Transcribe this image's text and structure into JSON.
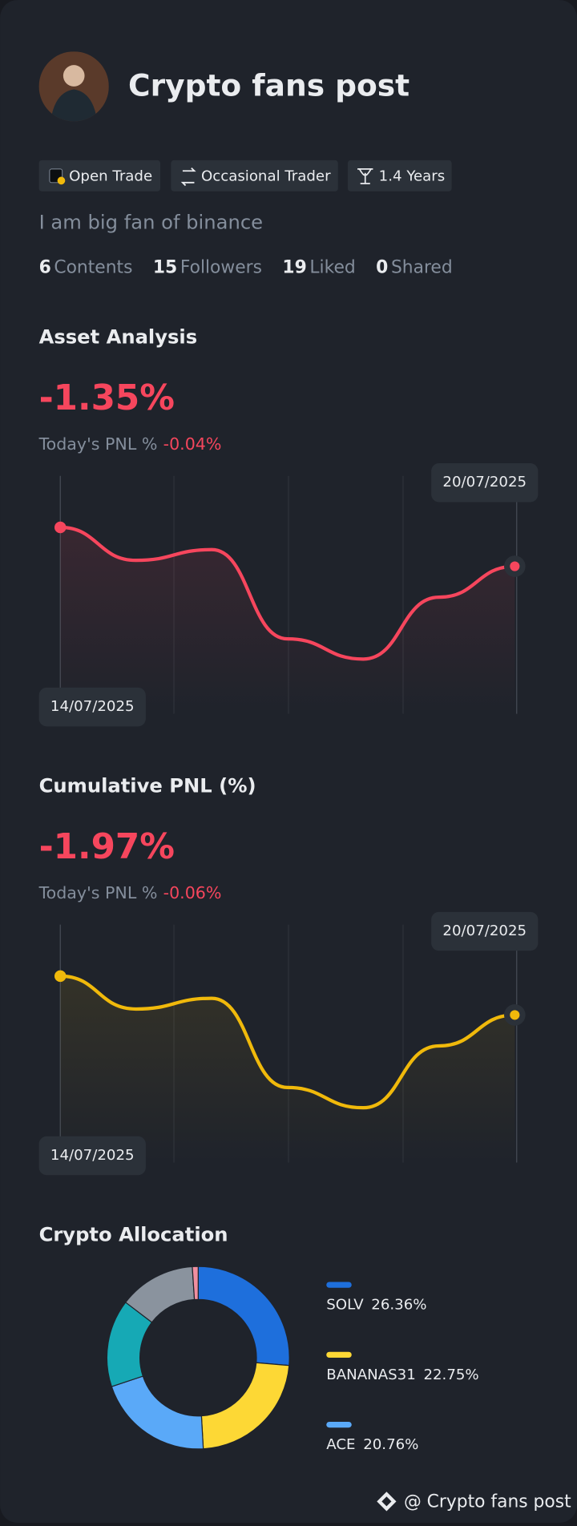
{
  "profile": {
    "name": "Crypto fans post",
    "tags": [
      "Open Trade",
      "Occasional Trader",
      "1.4 Years"
    ],
    "bio": "I am big fan of binance",
    "stats": [
      {
        "value": 6,
        "label": "Contents"
      },
      {
        "value": 15,
        "label": "Followers"
      },
      {
        "value": 19,
        "label": "Liked"
      },
      {
        "value": 0,
        "label": "Shared"
      }
    ]
  },
  "chart_data": [
    {
      "type": "line",
      "title": "Asset Analysis",
      "headline": "-1.35%",
      "subtitle": "Today's PNL %",
      "subtitle_value": "-0.04%",
      "x": [
        "14/07/2025",
        null,
        null,
        null,
        null,
        null,
        "20/07/2025"
      ],
      "series": [
        {
          "color": "#f6465d",
          "values": [
            156.7,
            129,
            138,
            63,
            46,
            98,
            124
          ]
        }
      ],
      "ylim": [
        0,
        200
      ]
    },
    {
      "type": "line",
      "title": "Cumulative PNL (%)",
      "headline": "-1.97%",
      "subtitle": "Today's PNL %",
      "subtitle_value": "-0.06%",
      "x": [
        "14/07/2025",
        null,
        null,
        null,
        null,
        null,
        "20/07/2025"
      ],
      "series": [
        {
          "color": "#f0b90b",
          "values": [
            156.7,
            129,
            138,
            63,
            46,
            98,
            124
          ]
        }
      ],
      "ylim": [
        0,
        200
      ]
    },
    {
      "type": "pie",
      "title": "Crypto Allocation",
      "categories": [
        "SOLV",
        "BANANAS31",
        "ACE",
        null,
        null,
        null
      ],
      "values": [
        26.36,
        22.75,
        20.76,
        15.5,
        13.6,
        1.03
      ],
      "value_labels": [
        "26.36%",
        "22.75%",
        "20.76%",
        null,
        null,
        null
      ],
      "colors": [
        "#1e6fdc",
        "#fdd835",
        "#5aa9f8",
        "#16a9b5",
        "#8a939e",
        "#f08fa0"
      ]
    }
  ],
  "footer": "@ Crypto fans post"
}
